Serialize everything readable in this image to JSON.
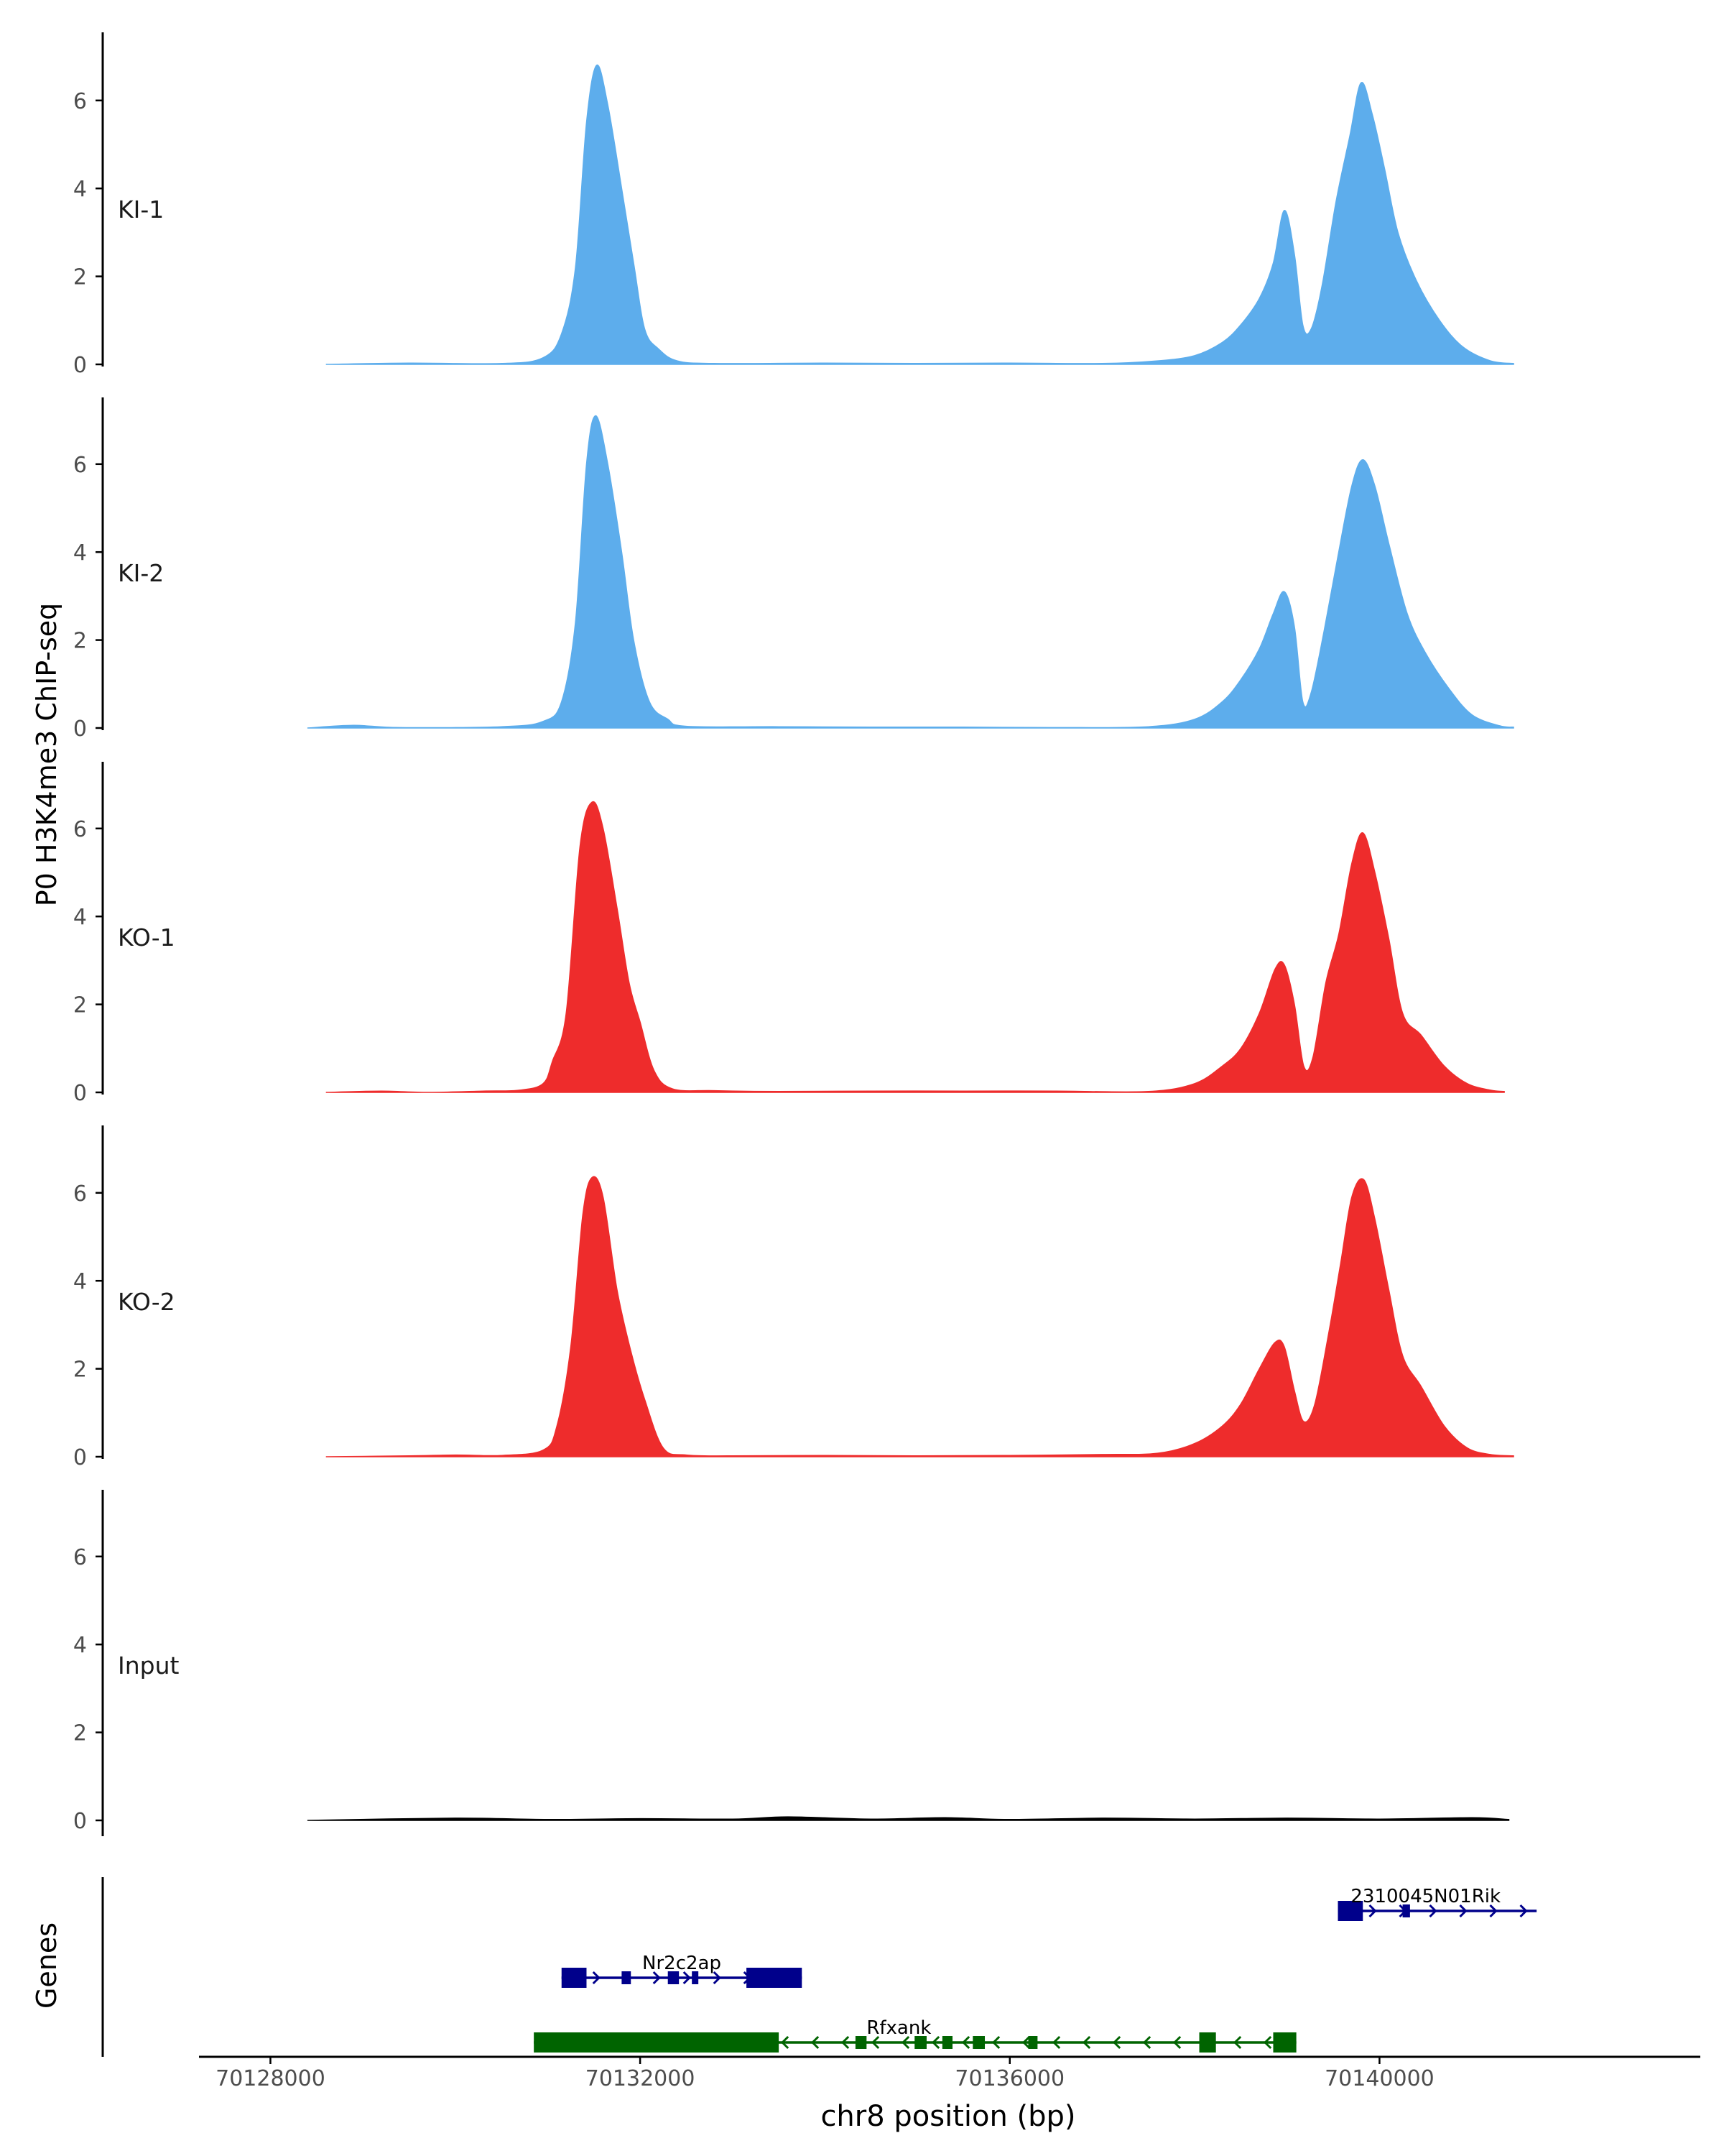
{
  "figure": {
    "ylabel": "P0 H3K4me3 ChIP-seq",
    "xlabel": "chr8 position (bp)",
    "genes_label": "Genes"
  },
  "colors": {
    "KI": "#5DADEC",
    "KO": "#EE2C2C",
    "Input": "#000000",
    "gene_plus": "#00008B",
    "gene_minus": "#006400",
    "axis": "#000000",
    "tick_text": "#4D4D4D"
  },
  "chart_data": {
    "type": "area",
    "x_range": [
      70127600,
      70143300
    ],
    "ylim": [
      0,
      7.5
    ],
    "y_ticks": [
      0,
      2,
      4,
      6
    ],
    "x_ticks": [
      70128000,
      70132000,
      70136000,
      70140000
    ],
    "x_tick_labels": [
      "70128000",
      "70132000",
      "70136000",
      "70140000"
    ],
    "tracks": [
      {
        "name": "KI-1",
        "color_key": "KI",
        "points": [
          [
            70128600,
            0
          ],
          [
            70129500,
            0.03
          ],
          [
            70130500,
            0.02
          ],
          [
            70130950,
            0.15
          ],
          [
            70131150,
            0.7
          ],
          [
            70131300,
            2.2
          ],
          [
            70131420,
            5.5
          ],
          [
            70131530,
            6.8
          ],
          [
            70131650,
            5.9
          ],
          [
            70131800,
            4.0
          ],
          [
            70131930,
            2.3
          ],
          [
            70132050,
            0.8
          ],
          [
            70132200,
            0.35
          ],
          [
            70132400,
            0.08
          ],
          [
            70132800,
            0.02
          ],
          [
            70134000,
            0.03
          ],
          [
            70135000,
            0.02
          ],
          [
            70136000,
            0.03
          ],
          [
            70137000,
            0.02
          ],
          [
            70137600,
            0.08
          ],
          [
            70138000,
            0.2
          ],
          [
            70138300,
            0.5
          ],
          [
            70138500,
            0.9
          ],
          [
            70138700,
            1.5
          ],
          [
            70138850,
            2.3
          ],
          [
            70138970,
            3.5
          ],
          [
            70139080,
            2.5
          ],
          [
            70139170,
            0.9
          ],
          [
            70139260,
            0.8
          ],
          [
            70139380,
            1.8
          ],
          [
            70139530,
            3.7
          ],
          [
            70139680,
            5.2
          ],
          [
            70139800,
            6.4
          ],
          [
            70139920,
            5.7
          ],
          [
            70140050,
            4.5
          ],
          [
            70140200,
            3.0
          ],
          [
            70140400,
            1.9
          ],
          [
            70140650,
            1.0
          ],
          [
            70140900,
            0.4
          ],
          [
            70141200,
            0.08
          ],
          [
            70141450,
            0.02
          ]
        ]
      },
      {
        "name": "KI-2",
        "color_key": "KI",
        "points": [
          [
            70128400,
            0
          ],
          [
            70128900,
            0.06
          ],
          [
            70129400,
            0.01
          ],
          [
            70130500,
            0.03
          ],
          [
            70130950,
            0.15
          ],
          [
            70131150,
            0.6
          ],
          [
            70131300,
            2.4
          ],
          [
            70131420,
            6.0
          ],
          [
            70131520,
            7.1
          ],
          [
            70131650,
            6.0
          ],
          [
            70131800,
            4.0
          ],
          [
            70131930,
            2.0
          ],
          [
            70132100,
            0.6
          ],
          [
            70132300,
            0.2
          ],
          [
            70132500,
            0.04
          ],
          [
            70133500,
            0.03
          ],
          [
            70134500,
            0.02
          ],
          [
            70135500,
            0.02
          ],
          [
            70136500,
            0.01
          ],
          [
            70137500,
            0.03
          ],
          [
            70138000,
            0.2
          ],
          [
            70138300,
            0.6
          ],
          [
            70138500,
            1.1
          ],
          [
            70138700,
            1.8
          ],
          [
            70138850,
            2.6
          ],
          [
            70138970,
            3.1
          ],
          [
            70139080,
            2.3
          ],
          [
            70139170,
            0.6
          ],
          [
            70139260,
            0.8
          ],
          [
            70139400,
            2.2
          ],
          [
            70139550,
            3.9
          ],
          [
            70139700,
            5.5
          ],
          [
            70139820,
            6.1
          ],
          [
            70139950,
            5.5
          ],
          [
            70140100,
            4.2
          ],
          [
            70140300,
            2.6
          ],
          [
            70140500,
            1.7
          ],
          [
            70140750,
            0.9
          ],
          [
            70141000,
            0.3
          ],
          [
            70141300,
            0.05
          ],
          [
            70141450,
            0.02
          ]
        ]
      },
      {
        "name": "KO-1",
        "color_key": "KO",
        "points": [
          [
            70128600,
            0
          ],
          [
            70129200,
            0.03
          ],
          [
            70129700,
            0
          ],
          [
            70130300,
            0.03
          ],
          [
            70130700,
            0.05
          ],
          [
            70130950,
            0.2
          ],
          [
            70131050,
            0.7
          ],
          [
            70131200,
            1.8
          ],
          [
            70131350,
            5.6
          ],
          [
            70131480,
            6.6
          ],
          [
            70131600,
            6.0
          ],
          [
            70131750,
            4.2
          ],
          [
            70131880,
            2.5
          ],
          [
            70132000,
            1.6
          ],
          [
            70132150,
            0.5
          ],
          [
            70132350,
            0.08
          ],
          [
            70132800,
            0.04
          ],
          [
            70133500,
            0.02
          ],
          [
            70134500,
            0.03
          ],
          [
            70135500,
            0.03
          ],
          [
            70136500,
            0.03
          ],
          [
            70137500,
            0.02
          ],
          [
            70138000,
            0.2
          ],
          [
            70138300,
            0.6
          ],
          [
            70138500,
            1.0
          ],
          [
            70138700,
            1.8
          ],
          [
            70138870,
            2.8
          ],
          [
            70138970,
            2.9
          ],
          [
            70139080,
            2.0
          ],
          [
            70139180,
            0.6
          ],
          [
            70139280,
            0.8
          ],
          [
            70139420,
            2.5
          ],
          [
            70139560,
            3.6
          ],
          [
            70139700,
            5.2
          ],
          [
            70139820,
            5.9
          ],
          [
            70139950,
            5.0
          ],
          [
            70140100,
            3.5
          ],
          [
            70140250,
            1.8
          ],
          [
            70140450,
            1.3
          ],
          [
            70140700,
            0.6
          ],
          [
            70140950,
            0.2
          ],
          [
            70141200,
            0.05
          ],
          [
            70141350,
            0.02
          ]
        ]
      },
      {
        "name": "KO-2",
        "color_key": "KO",
        "points": [
          [
            70128600,
            0
          ],
          [
            70129500,
            0.02
          ],
          [
            70130000,
            0.04
          ],
          [
            70130500,
            0.03
          ],
          [
            70130950,
            0.15
          ],
          [
            70131100,
            0.7
          ],
          [
            70131250,
            2.5
          ],
          [
            70131380,
            5.5
          ],
          [
            70131480,
            6.35
          ],
          [
            70131600,
            5.9
          ],
          [
            70131750,
            3.8
          ],
          [
            70131900,
            2.4
          ],
          [
            70132050,
            1.3
          ],
          [
            70132250,
            0.2
          ],
          [
            70132500,
            0.04
          ],
          [
            70133000,
            0.02
          ],
          [
            70134000,
            0.03
          ],
          [
            70135000,
            0.02
          ],
          [
            70136000,
            0.03
          ],
          [
            70137000,
            0.05
          ],
          [
            70137600,
            0.08
          ],
          [
            70138000,
            0.3
          ],
          [
            70138300,
            0.7
          ],
          [
            70138500,
            1.2
          ],
          [
            70138700,
            2.0
          ],
          [
            70138870,
            2.6
          ],
          [
            70138970,
            2.5
          ],
          [
            70139080,
            1.5
          ],
          [
            70139180,
            0.8
          ],
          [
            70139300,
            1.2
          ],
          [
            70139450,
            2.8
          ],
          [
            70139580,
            4.4
          ],
          [
            70139700,
            5.9
          ],
          [
            70139830,
            6.3
          ],
          [
            70139950,
            5.4
          ],
          [
            70140100,
            3.8
          ],
          [
            70140250,
            2.3
          ],
          [
            70140450,
            1.6
          ],
          [
            70140700,
            0.7
          ],
          [
            70140950,
            0.2
          ],
          [
            70141200,
            0.05
          ],
          [
            70141450,
            0.02
          ]
        ]
      },
      {
        "name": "Input",
        "color_key": "Input",
        "points": [
          [
            70128400,
            0
          ],
          [
            70130000,
            0.05
          ],
          [
            70131000,
            0.02
          ],
          [
            70132000,
            0.04
          ],
          [
            70133000,
            0.03
          ],
          [
            70133600,
            0.08
          ],
          [
            70134500,
            0.03
          ],
          [
            70135300,
            0.06
          ],
          [
            70136000,
            0.02
          ],
          [
            70137000,
            0.05
          ],
          [
            70138000,
            0.03
          ],
          [
            70139000,
            0.05
          ],
          [
            70140000,
            0.03
          ],
          [
            70141000,
            0.06
          ],
          [
            70141400,
            0.02
          ]
        ]
      }
    ],
    "genes": [
      {
        "name": "2310045N01Rik",
        "strand": "+",
        "color_key": "gene_plus",
        "row": 0,
        "start": 70139550,
        "end": 70141700,
        "exons": [
          [
            70139550,
            70139820
          ],
          [
            70140250,
            70140330
          ]
        ],
        "label_at": 70140500
      },
      {
        "name": "Nr2c2ap",
        "strand": "+",
        "color_key": "gene_plus",
        "row": 1,
        "start": 70131150,
        "end": 70133750,
        "exons": [
          [
            70131150,
            70131420
          ],
          [
            70131800,
            70131900
          ],
          [
            70132300,
            70132420
          ],
          [
            70132560,
            70132630
          ],
          [
            70133150,
            70133750
          ]
        ],
        "label_at": 70132450
      },
      {
        "name": "Rfxank",
        "strand": "-",
        "color_key": "gene_minus",
        "row": 2,
        "start": 70130850,
        "end": 70139100,
        "exons": [
          [
            70130850,
            70133500
          ],
          [
            70134330,
            70134450
          ],
          [
            70134970,
            70135100
          ],
          [
            70135270,
            70135380
          ],
          [
            70135600,
            70135730
          ],
          [
            70136200,
            70136300
          ],
          [
            70138050,
            70138230
          ],
          [
            70138850,
            70139100
          ]
        ],
        "label_at": 70134800
      }
    ]
  }
}
